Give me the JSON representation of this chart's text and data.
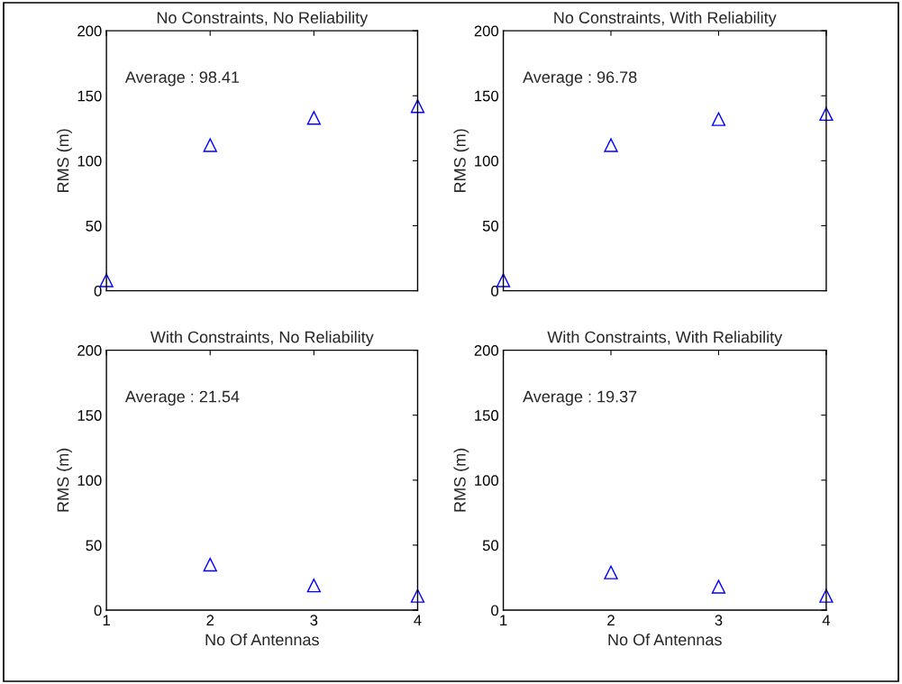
{
  "chart_data": [
    {
      "type": "scatter",
      "title": "No Constraints, No Reliability",
      "ylabel": "RMS (m)",
      "annotations": [
        "Average : 98.41"
      ],
      "x": [
        1,
        2,
        3,
        4
      ],
      "series": [
        {
          "color": "#0000ff",
          "values": [
            8,
            112,
            133,
            142
          ]
        }
      ],
      "xlim": [
        1,
        4
      ],
      "xticks": [
        1,
        2,
        3,
        4
      ],
      "ylim": [
        0,
        200
      ],
      "yticks": [
        0,
        50,
        100,
        150,
        200
      ],
      "tick_labels": "y",
      "marker": "triangle",
      "grid": false,
      "legend": false
    },
    {
      "type": "scatter",
      "title": "No Constraints, With Reliability",
      "ylabel": "RMS (m)",
      "annotations": [
        "Average : 96.78"
      ],
      "x": [
        1,
        2,
        3,
        4
      ],
      "series": [
        {
          "color": "#0000ff",
          "values": [
            8,
            112,
            132,
            136
          ]
        }
      ],
      "xlim": [
        1,
        4
      ],
      "xticks": [
        1,
        2,
        3,
        4
      ],
      "ylim": [
        0,
        200
      ],
      "yticks": [
        0,
        50,
        100,
        150,
        200
      ],
      "tick_labels": "y",
      "marker": "triangle",
      "grid": false,
      "legend": false
    },
    {
      "type": "scatter",
      "title": "With Constraints, No Reliability",
      "xlabel": "No Of Antennas",
      "ylabel": "RMS (m)",
      "annotations": [
        "Average : 21.54"
      ],
      "x": [
        2,
        3,
        4
      ],
      "series": [
        {
          "color": "#0000ff",
          "values": [
            35,
            19,
            11
          ]
        }
      ],
      "xlim": [
        1,
        4
      ],
      "xticks": [
        1,
        2,
        3,
        4
      ],
      "ylim": [
        0,
        200
      ],
      "yticks": [
        0,
        50,
        100,
        150,
        200
      ],
      "marker": "triangle",
      "grid": false,
      "legend": false
    },
    {
      "type": "scatter",
      "title": "With Constraints, With Reliability",
      "xlabel": "No Of Antennas",
      "ylabel": "RMS (m)",
      "annotations": [
        "Average : 19.37"
      ],
      "x": [
        2,
        3,
        4
      ],
      "series": [
        {
          "color": "#0000ff",
          "values": [
            29,
            18,
            11
          ]
        }
      ],
      "xlim": [
        1,
        4
      ],
      "xticks": [
        1,
        2,
        3,
        4
      ],
      "ylim": [
        0,
        200
      ],
      "yticks": [
        0,
        50,
        100,
        150,
        200
      ],
      "marker": "triangle",
      "grid": false,
      "legend": false
    }
  ]
}
